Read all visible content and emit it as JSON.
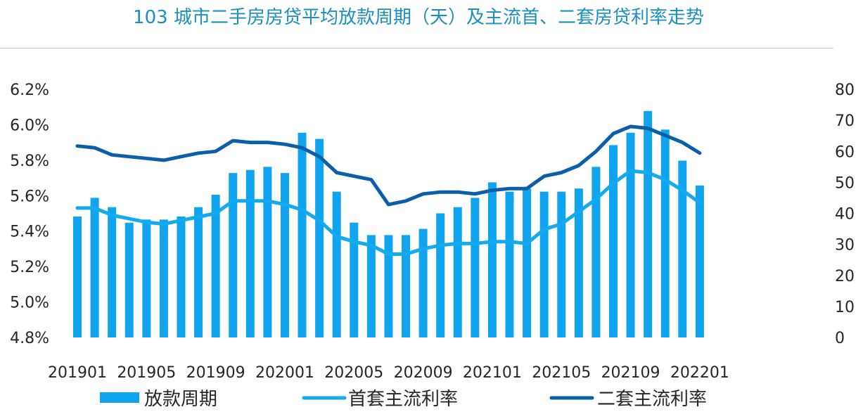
{
  "title": "103 城市二手房房贷平均放款周期（天）及主流首、二套房贷利率走势",
  "chart_data": {
    "type": "bar",
    "title": "103 城市二手房房贷平均放款周期（天）及主流首、二套房贷利率走势",
    "x": [
      "201901",
      "201902",
      "201903",
      "201904",
      "201905",
      "201906",
      "201907",
      "201908",
      "201909",
      "201910",
      "201911",
      "201912",
      "202001",
      "202002",
      "202003",
      "202004",
      "202005",
      "202006",
      "202007",
      "202008",
      "202009",
      "202010",
      "202011",
      "202012",
      "202101",
      "202102",
      "202103",
      "202104",
      "202105",
      "202106",
      "202107",
      "202108",
      "202109",
      "202110",
      "202111",
      "202112",
      "202201"
    ],
    "x_tick_labels": [
      "201901",
      "201905",
      "201909",
      "202001",
      "202005",
      "202009",
      "202101",
      "202105",
      "202109",
      "202201"
    ],
    "y_left": {
      "ylim": [
        4.8,
        6.2
      ],
      "ticks": [
        "6.2%",
        "6.0%",
        "5.8%",
        "5.6%",
        "5.4%",
        "5.2%",
        "5.0%",
        "4.8%"
      ]
    },
    "y_right": {
      "ylim": [
        0,
        80
      ],
      "ticks": [
        "80",
        "70",
        "60",
        "50",
        "40",
        "30",
        "20",
        "10",
        "0"
      ]
    },
    "series": [
      {
        "name": "放款周期",
        "type": "bar",
        "axis": "right",
        "color": "#10a4ef",
        "values": [
          39,
          45,
          42,
          37,
          38,
          38,
          39,
          42,
          46,
          53,
          54,
          55,
          53,
          66,
          64,
          47,
          37,
          33,
          33,
          33,
          35,
          40,
          42,
          45,
          50,
          47,
          48,
          47,
          47,
          48,
          55,
          62,
          66,
          73,
          67,
          57,
          49
        ]
      },
      {
        "name": "首套主流利率",
        "type": "line",
        "axis": "left",
        "color": "#13aaf0",
        "values": [
          5.53,
          5.53,
          5.49,
          5.47,
          5.45,
          5.44,
          5.46,
          5.48,
          5.5,
          5.57,
          5.57,
          5.57,
          5.55,
          5.52,
          5.46,
          5.37,
          5.34,
          5.32,
          5.27,
          5.27,
          5.3,
          5.32,
          5.33,
          5.33,
          5.34,
          5.34,
          5.33,
          5.41,
          5.44,
          5.51,
          5.58,
          5.67,
          5.74,
          5.73,
          5.69,
          5.63,
          5.56
        ]
      },
      {
        "name": "二套主流利率",
        "type": "line",
        "axis": "left",
        "color": "#0b5ea8",
        "values": [
          5.88,
          5.87,
          5.83,
          5.82,
          5.81,
          5.8,
          5.82,
          5.84,
          5.85,
          5.91,
          5.9,
          5.9,
          5.89,
          5.87,
          5.82,
          5.73,
          5.71,
          5.69,
          5.55,
          5.57,
          5.61,
          5.62,
          5.62,
          5.61,
          5.63,
          5.64,
          5.64,
          5.71,
          5.73,
          5.77,
          5.85,
          5.95,
          5.99,
          5.98,
          5.94,
          5.9,
          5.84
        ]
      }
    ],
    "legend": "bottom",
    "grid": false
  }
}
